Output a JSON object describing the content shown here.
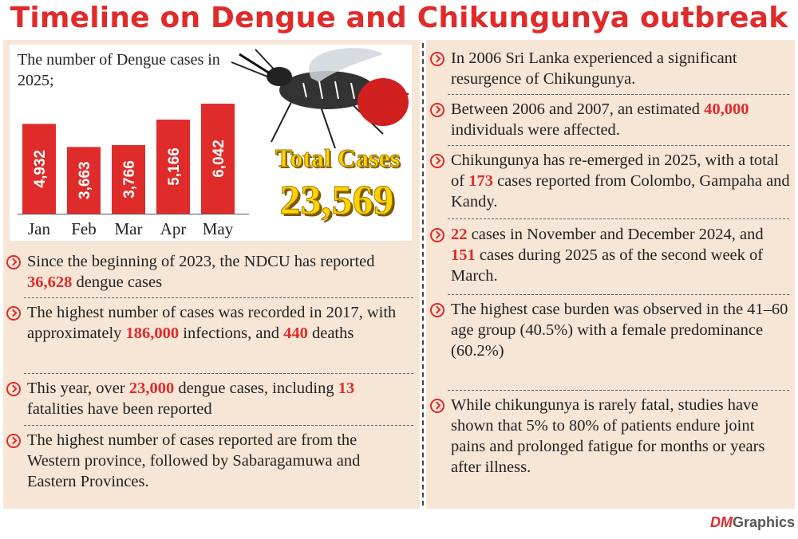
{
  "title": "Timeline on Dengue and Chikungunya outbreak",
  "chart_caption": "The number of Dengue cases in 2025;",
  "total_label": "Total Cases",
  "total_value": "23,569",
  "chart_data": {
    "type": "bar",
    "categories": [
      "Jan",
      "Feb",
      "Mar",
      "Apr",
      "May"
    ],
    "values": [
      4932,
      3663,
      3766,
      5166,
      6042
    ],
    "value_labels": [
      "4,932",
      "3,663",
      "3,766",
      "5,166",
      "6,042"
    ],
    "title": "The number of Dengue cases in 2025;",
    "xlabel": "",
    "ylabel": "",
    "ylim": [
      0,
      6042
    ],
    "grid": false,
    "bar_color": "#e02b2b"
  },
  "left_bullets": [
    {
      "parts": [
        {
          "t": "Since the beginning of 2023, the NDCU has reported "
        },
        {
          "t": "36,628",
          "hl": true
        },
        {
          "t": " dengue cases"
        }
      ]
    },
    {
      "parts": [
        {
          "t": "The highest number of cases was recorded in 2017, with approximately "
        },
        {
          "t": "186,000",
          "hl": true
        },
        {
          "t": " infections, and "
        },
        {
          "t": "440",
          "hl": true
        },
        {
          "t": " deaths"
        }
      ]
    },
    {
      "parts": [
        {
          "t": "This year, over "
        },
        {
          "t": "23,000",
          "hl": true
        },
        {
          "t": " dengue cases, including "
        },
        {
          "t": "13",
          "hl": true
        },
        {
          "t": " fatalities have been reported"
        }
      ]
    },
    {
      "parts": [
        {
          "t": "The highest number of cases reported are from the Western province, followed by Sabaragamuwa and Eastern Provinces."
        }
      ]
    }
  ],
  "right_bullets": [
    {
      "parts": [
        {
          "t": "In 2006 Sri Lanka experienced a significant resurgence of Chikungunya."
        }
      ]
    },
    {
      "parts": [
        {
          "t": "Between 2006 and 2007, an estimated "
        },
        {
          "t": "40,000",
          "hl": true
        },
        {
          "t": " individuals were affected."
        }
      ]
    },
    {
      "parts": [
        {
          "t": "Chikungunya has re-emerged in 2025, with a total of "
        },
        {
          "t": "173",
          "hl": true
        },
        {
          "t": " cases reported from Colombo, Gampaha and Kandy."
        }
      ]
    },
    {
      "parts": [
        {
          "t": "22",
          "hl": true
        },
        {
          "t": " cases in November and December 2024, and "
        },
        {
          "t": "151",
          "hl": true
        },
        {
          "t": " cases during 2025 as of the second week of March."
        }
      ]
    },
    {
      "parts": [
        {
          "t": "The highest case burden was observed in the 41–60 age group (40.5%) with a female predominance (60.2%)"
        }
      ]
    },
    {
      "parts": [
        {
          "t": "While chikungunya is rarely fatal, studies have shown that 5% to 80% of patients endure joint pains and prolonged fatigue for months or years after illness."
        }
      ]
    }
  ],
  "brand": {
    "prefix": "DM",
    "suffix": "Graphics"
  },
  "colors": {
    "accent": "#e02b2b",
    "panel": "#f7e6d6",
    "total": "#ffd300"
  }
}
